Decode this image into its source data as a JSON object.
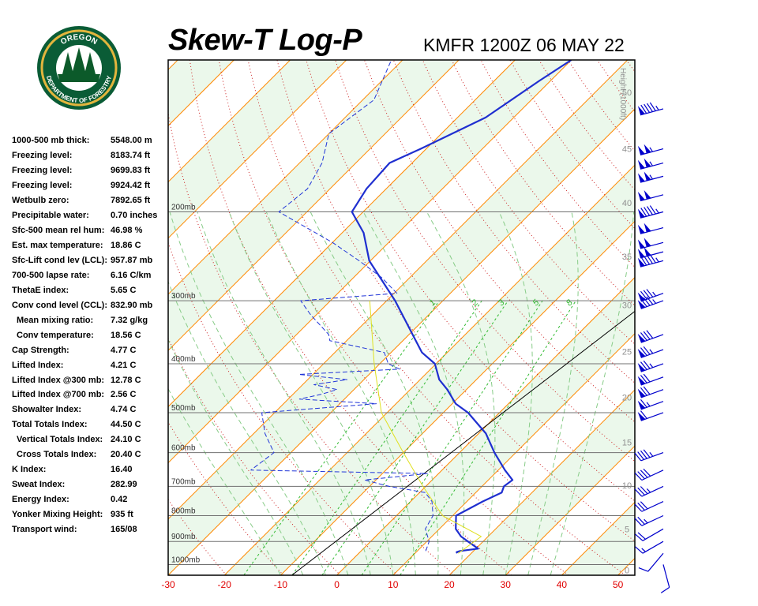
{
  "title": "Skew-T Log-P",
  "station_time": "KMFR 1200Z 06 MAY 22",
  "logo": {
    "top_text": "OREGON",
    "bottom_text": "DEPARTMENT OF FORESTRY",
    "colors": {
      "ring": "#0a5c36",
      "gold": "#e2b53d",
      "tree": "#0c5a2a"
    }
  },
  "indices": [
    {
      "label": "1000-500 mb thick:",
      "value": "5548.00 m",
      "indent": false
    },
    {
      "label": "Freezing level:",
      "value": "8183.74 ft",
      "indent": false
    },
    {
      "label": "Freezing level:",
      "value": "9699.83 ft",
      "indent": false
    },
    {
      "label": "Freezing level:",
      "value": "9924.42 ft",
      "indent": false
    },
    {
      "label": "Wetbulb zero:",
      "value": "7892.65 ft",
      "indent": false
    },
    {
      "label": "Precipitable water:",
      "value": "0.70 inches",
      "indent": false
    },
    {
      "label": "Sfc-500 mean rel hum:",
      "value": "46.98 %",
      "indent": false
    },
    {
      "label": "Est. max temperature:",
      "value": "18.86 C",
      "indent": false
    },
    {
      "label": "Sfc-Lift cond lev (LCL):",
      "value": "957.87 mb",
      "indent": false
    },
    {
      "label": "700-500 lapse rate:",
      "value": "6.16 C/km",
      "indent": false
    },
    {
      "label": "ThetaE index:",
      "value": "5.65 C",
      "indent": false
    },
    {
      "label": "Conv cond level (CCL):",
      "value": "832.90 mb",
      "indent": false
    },
    {
      "label": "Mean mixing ratio:",
      "value": "7.32 g/kg",
      "indent": true
    },
    {
      "label": "Conv temperature:",
      "value": "18.56 C",
      "indent": true
    },
    {
      "label": "Cap Strength:",
      "value": "4.77 C",
      "indent": false
    },
    {
      "label": "Lifted Index:",
      "value": "4.21 C",
      "indent": false
    },
    {
      "label": "Lifted Index @300 mb:",
      "value": "12.78 C",
      "indent": false
    },
    {
      "label": "Lifted Index @700 mb:",
      "value": "2.56 C",
      "indent": false
    },
    {
      "label": "Showalter Index:",
      "value": "4.74 C",
      "indent": false
    },
    {
      "label": "Total Totals Index:",
      "value": "44.50 C",
      "indent": false
    },
    {
      "label": "Vertical Totals Index:",
      "value": "24.10 C",
      "indent": true
    },
    {
      "label": "Cross Totals Index:",
      "value": "20.40 C",
      "indent": true
    },
    {
      "label": "K Index:",
      "value": "16.40",
      "indent": false
    },
    {
      "label": "Sweat Index:",
      "value": "282.99",
      "indent": false
    },
    {
      "label": "Energy Index:",
      "value": "0.42",
      "indent": false
    },
    {
      "label": "Yonker Mixing Height:",
      "value": "935 ft",
      "indent": false
    },
    {
      "label": "Transport wind:",
      "value": "165/08",
      "indent": false
    }
  ],
  "chart_data": {
    "type": "line",
    "subtype": "skew-t log-p",
    "xlim": [
      -30,
      53
    ],
    "x_ticks": [
      "-30",
      "-20",
      "-10",
      "0",
      "10",
      "20",
      "30",
      "40",
      "50"
    ],
    "pressure_range": [
      1050,
      100
    ],
    "pressure_levels": [
      {
        "p": 1000,
        "label": "1000mb"
      },
      {
        "p": 900,
        "label": "900mb"
      },
      {
        "p": 800,
        "label": "800mb"
      },
      {
        "p": 700,
        "label": "700mb"
      },
      {
        "p": 600,
        "label": "600mb"
      },
      {
        "p": 500,
        "label": "500mb"
      },
      {
        "p": 400,
        "label": "400mb"
      },
      {
        "p": 300,
        "label": "300mb"
      },
      {
        "p": 200,
        "label": "200mb"
      }
    ],
    "height_axis_title": "Height (1000ft)",
    "height_ticks": [
      {
        "label": "0",
        "p": 1026
      },
      {
        "label": "5",
        "p": 850
      },
      {
        "label": "10",
        "p": 697
      },
      {
        "label": "15",
        "p": 572
      },
      {
        "label": "20",
        "p": 466
      },
      {
        "label": "25",
        "p": 378
      },
      {
        "label": "30",
        "p": 306
      },
      {
        "label": "35",
        "p": 245
      },
      {
        "label": "40",
        "p": 192
      },
      {
        "label": "45",
        "p": 150
      },
      {
        "label": "50",
        "p": 116
      }
    ],
    "mixing_ratio_labels": [
      "1",
      "2",
      "3",
      "5",
      "8"
    ],
    "series": [
      {
        "key": "temperature",
        "color": "#1f2fd0",
        "points": [
          [
            950,
            17.5
          ],
          [
            945,
            17.2
          ],
          [
            940,
            17.6
          ],
          [
            930,
            20.4
          ],
          [
            900,
            17.3
          ],
          [
            880,
            15.2
          ],
          [
            850,
            12.9
          ],
          [
            800,
            10.6
          ],
          [
            750,
            12.8
          ],
          [
            720,
            14.6
          ],
          [
            700,
            13.9
          ],
          [
            680,
            14.3
          ],
          [
            650,
            11.2
          ],
          [
            600,
            6.2
          ],
          [
            550,
            1.3
          ],
          [
            500,
            -5.6
          ],
          [
            480,
            -9.4
          ],
          [
            450,
            -13.4
          ],
          [
            430,
            -16.6
          ],
          [
            400,
            -20.2
          ],
          [
            380,
            -24.5
          ],
          [
            360,
            -27.7
          ],
          [
            300,
            -38.5
          ],
          [
            250,
            -50.2
          ],
          [
            220,
            -56.2
          ],
          [
            200,
            -62.0
          ],
          [
            180,
            -63.5
          ],
          [
            160,
            -64.0
          ],
          [
            150,
            -61.0
          ],
          [
            130,
            -55.0
          ],
          [
            110,
            -52.0
          ],
          [
            100,
            -50.0
          ]
        ]
      },
      {
        "key": "dewpoint",
        "color": "#2035d8",
        "dashed": true,
        "points": [
          [
            940,
            11.5
          ],
          [
            900,
            10.4
          ],
          [
            850,
            7.5
          ],
          [
            800,
            6.5
          ],
          [
            750,
            3.8
          ],
          [
            720,
            1.0
          ],
          [
            700,
            -6.5
          ],
          [
            680,
            -12.0
          ],
          [
            660,
            -2.0
          ],
          [
            650,
            -34.0
          ],
          [
            600,
            -33.0
          ],
          [
            550,
            -38.0
          ],
          [
            500,
            -42.3
          ],
          [
            480,
            -23.5
          ],
          [
            470,
            -38.0
          ],
          [
            460,
            -35.0
          ],
          [
            450,
            -33.0
          ],
          [
            440,
            -38.0
          ],
          [
            430,
            -33.0
          ],
          [
            420,
            -42.5
          ],
          [
            410,
            -25.5
          ],
          [
            400,
            -28.5
          ],
          [
            380,
            -31.2
          ],
          [
            360,
            -43.0
          ],
          [
            350,
            -44.3
          ],
          [
            320,
            -51.0
          ],
          [
            300,
            -55.3
          ],
          [
            290,
            -39.5
          ],
          [
            270,
            -45.0
          ],
          [
            250,
            -52.0
          ],
          [
            230,
            -60.0
          ],
          [
            200,
            -75.0
          ],
          [
            180,
            -74.0
          ],
          [
            160,
            -76.0
          ],
          [
            140,
            -80.0
          ],
          [
            120,
            -78.0
          ],
          [
            100,
            -82.0
          ]
        ]
      },
      {
        "key": "parcel",
        "color": "#e0e020",
        "points": [
          [
            950,
            17.7
          ],
          [
            880,
            18.8
          ],
          [
            800,
            8.2
          ],
          [
            700,
            -0.5
          ],
          [
            600,
            -10.0
          ],
          [
            500,
            -21.0
          ],
          [
            400,
            -31.0
          ],
          [
            300,
            -43.0
          ]
        ]
      }
    ],
    "wind_barbs": [
      {
        "p": 1000,
        "dir": 165,
        "spd": 8
      },
      {
        "p": 950,
        "dir": 220,
        "spd": 10
      },
      {
        "p": 900,
        "dir": 240,
        "spd": 15
      },
      {
        "p": 850,
        "dir": 240,
        "spd": 20
      },
      {
        "p": 800,
        "dir": 245,
        "spd": 25
      },
      {
        "p": 750,
        "dir": 245,
        "spd": 30
      },
      {
        "p": 700,
        "dir": 245,
        "spd": 35
      },
      {
        "p": 650,
        "dir": 245,
        "spd": 40
      },
      {
        "p": 600,
        "dir": 250,
        "spd": 45
      },
      {
        "p": 500,
        "dir": 250,
        "spd": 60
      },
      {
        "p": 475,
        "dir": 250,
        "spd": 65
      },
      {
        "p": 450,
        "dir": 250,
        "spd": 70
      },
      {
        "p": 425,
        "dir": 250,
        "spd": 70
      },
      {
        "p": 400,
        "dir": 250,
        "spd": 75
      },
      {
        "p": 375,
        "dir": 250,
        "spd": 75
      },
      {
        "p": 350,
        "dir": 250,
        "spd": 80
      },
      {
        "p": 300,
        "dir": 250,
        "spd": 85
      },
      {
        "p": 290,
        "dir": 250,
        "spd": 85
      },
      {
        "p": 250,
        "dir": 255,
        "spd": 95
      },
      {
        "p": 240,
        "dir": 255,
        "spd": 100
      },
      {
        "p": 230,
        "dir": 255,
        "spd": 100
      },
      {
        "p": 215,
        "dir": 255,
        "spd": 100
      },
      {
        "p": 200,
        "dir": 255,
        "spd": 95
      },
      {
        "p": 185,
        "dir": 255,
        "spd": 100
      },
      {
        "p": 170,
        "dir": 255,
        "spd": 105
      },
      {
        "p": 160,
        "dir": 255,
        "spd": 105
      },
      {
        "p": 150,
        "dir": 255,
        "spd": 105
      },
      {
        "p": 125,
        "dir": 255,
        "spd": 95
      }
    ],
    "colors": {
      "isotherm": "#ff8800",
      "dry_adiabat": "#cc2222",
      "moist_adiabat": "#88cc88",
      "mixing_ratio": "#33bb33",
      "isobar": "#707070",
      "band_light": "#ebf8eb",
      "band_white": "#ffffff",
      "tick_label": "#e00000",
      "height_label": "#909090",
      "wind_barb": "#0000cc"
    },
    "grid": true
  }
}
